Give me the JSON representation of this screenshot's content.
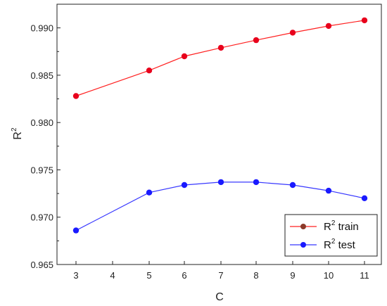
{
  "chart_data": {
    "type": "line",
    "xlabel": "C",
    "ylabel_base": "R",
    "ylabel_sup": "2",
    "x": [
      3,
      5,
      6,
      7,
      8,
      9,
      10,
      11
    ],
    "xticks": [
      3,
      4,
      5,
      6,
      7,
      8,
      9,
      10,
      11
    ],
    "xtick_labels": [
      "3",
      "4",
      "5",
      "6",
      "7",
      "8",
      "9",
      "10",
      "11"
    ],
    "yticks": [
      0.965,
      0.97,
      0.975,
      0.98,
      0.985,
      0.99
    ],
    "ytick_labels": [
      "0.965",
      "0.970",
      "0.975",
      "0.980",
      "0.985",
      "0.990"
    ],
    "ylim": [
      0.965,
      0.9925
    ],
    "x_scale": "linear-segmented",
    "grid": false,
    "legend_position": "bottom-right",
    "series": [
      {
        "name_base": "R",
        "name_sup": "2",
        "name_rest": " train",
        "color": "#ff2020",
        "marker_color": "#e8001c",
        "legend_marker_color": "#8b3a2a",
        "values": [
          0.9828,
          0.9855,
          0.987,
          0.9879,
          0.9887,
          0.9895,
          0.9902,
          0.9908
        ]
      },
      {
        "name_base": "R",
        "name_sup": "2",
        "name_rest": " test",
        "color": "#3838ff",
        "marker_color": "#1a1aff",
        "legend_marker_color": "#1a1aff",
        "values": [
          0.9686,
          0.9726,
          0.9734,
          0.9737,
          0.9737,
          0.9734,
          0.9728,
          0.972
        ]
      }
    ]
  }
}
